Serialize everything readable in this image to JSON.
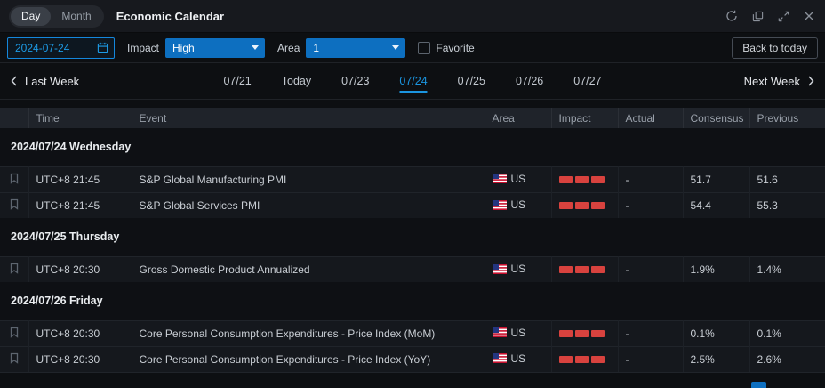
{
  "titlebar": {
    "view_toggle": {
      "day": "Day",
      "month": "Month",
      "selected": "Day"
    },
    "title": "Economic Calendar",
    "icons": [
      "refresh-icon",
      "popout-icon",
      "expand-icon",
      "close-icon"
    ]
  },
  "filters": {
    "date_value": "2024-07-24",
    "impact_label": "Impact",
    "impact_value": "High",
    "area_label": "Area",
    "area_value": "1",
    "favorite_label": "Favorite",
    "favorite_checked": false,
    "back_to_today": "Back to today"
  },
  "week_nav": {
    "last_week": "Last Week",
    "next_week": "Next Week",
    "tabs": [
      {
        "label": "07/21",
        "active": false
      },
      {
        "label": "Today",
        "active": false
      },
      {
        "label": "07/23",
        "active": false
      },
      {
        "label": "07/24",
        "active": true
      },
      {
        "label": "07/25",
        "active": false
      },
      {
        "label": "07/26",
        "active": false
      },
      {
        "label": "07/27",
        "active": false
      }
    ]
  },
  "table": {
    "columns": [
      "",
      "Time",
      "Event",
      "Area",
      "Impact",
      "Actual",
      "Consensus",
      "Previous"
    ],
    "groups": [
      {
        "header": "2024/07/24 Wednesday",
        "rows": [
          {
            "time": "UTC+8 21:45",
            "event": "S&P Global Manufacturing PMI",
            "area": "US",
            "impact_bars": 3,
            "actual": "-",
            "consensus": "51.7",
            "previous": "51.6"
          },
          {
            "time": "UTC+8 21:45",
            "event": "S&P Global Services PMI",
            "area": "US",
            "impact_bars": 3,
            "actual": "-",
            "consensus": "54.4",
            "previous": "55.3"
          }
        ]
      },
      {
        "header": "2024/07/25 Thursday",
        "rows": [
          {
            "time": "UTC+8 20:30",
            "event": "Gross Domestic Product Annualized",
            "area": "US",
            "impact_bars": 3,
            "actual": "-",
            "consensus": "1.9%",
            "previous": "1.4%"
          }
        ]
      },
      {
        "header": "2024/07/26 Friday",
        "rows": [
          {
            "time": "UTC+8 20:30",
            "event": "Core Personal Consumption Expenditures - Price Index (MoM)",
            "area": "US",
            "impact_bars": 3,
            "actual": "-",
            "consensus": "0.1%",
            "previous": "0.1%"
          },
          {
            "time": "UTC+8 20:30",
            "event": "Core Personal Consumption Expenditures - Price Index (YoY)",
            "area": "US",
            "impact_bars": 3,
            "actual": "-",
            "consensus": "2.5%",
            "previous": "2.6%"
          }
        ]
      }
    ]
  },
  "colors": {
    "accent_blue": "#1487dc",
    "dropdown_fill": "#0d6fc0",
    "impact_red": "#d8423e",
    "background": "#0d0f12"
  }
}
